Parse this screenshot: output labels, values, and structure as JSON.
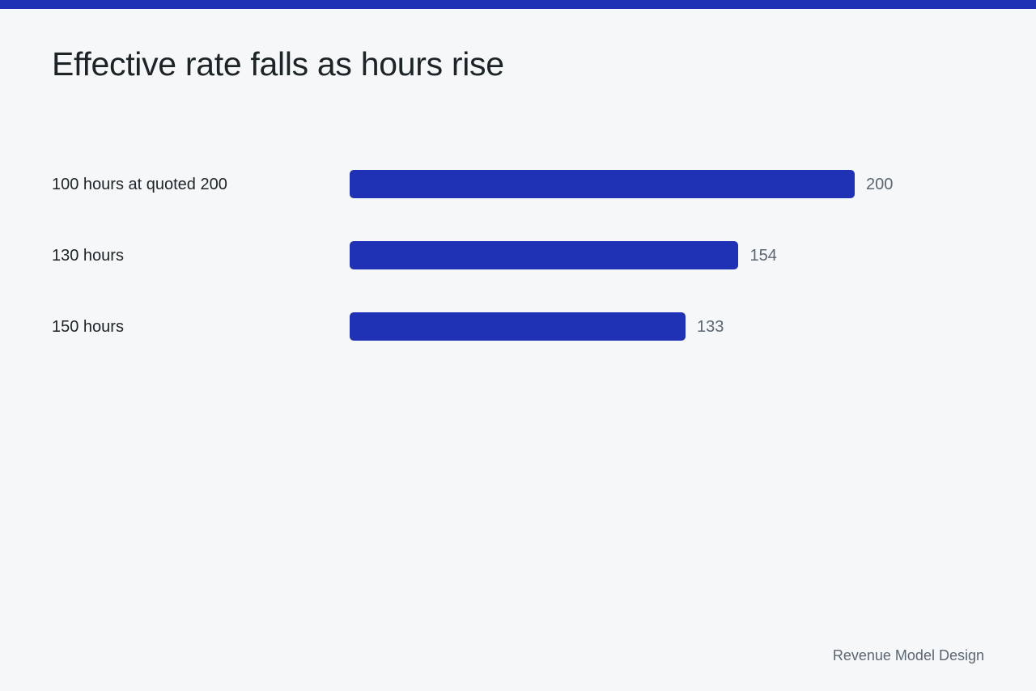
{
  "title": "Effective rate falls as hours rise",
  "footer": "Revenue Model Design",
  "colors": {
    "accent": "#1f32b5",
    "background": "#f5f7f9",
    "text": "#1c2428",
    "muted_text": "#5b6670"
  },
  "chart_data": {
    "type": "bar",
    "orientation": "horizontal",
    "title": "Effective rate falls as hours rise",
    "categories": [
      "100 hours at quoted 200",
      "130 hours",
      "150 hours"
    ],
    "values": [
      200,
      154,
      133
    ],
    "value_labels": [
      "200",
      "154",
      "133"
    ],
    "xlim": [
      0,
      200
    ],
    "grid": false,
    "legend": "none"
  }
}
